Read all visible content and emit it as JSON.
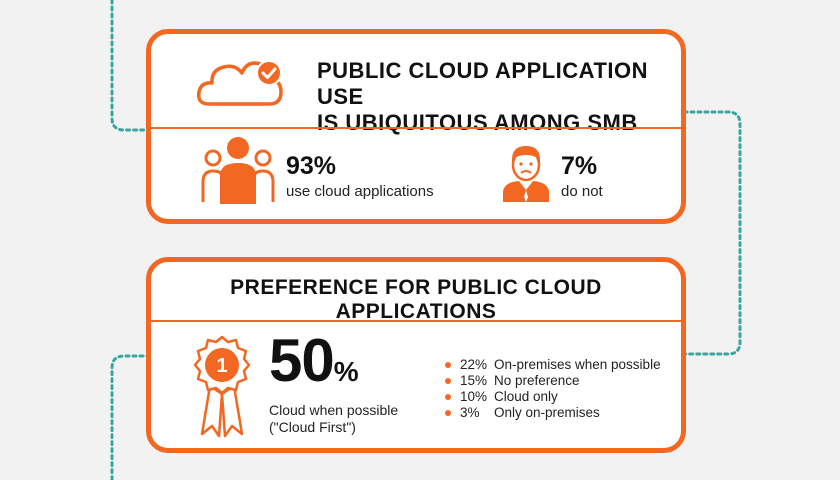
{
  "colors": {
    "accent": "#f26722",
    "connector": "#3aa6a0",
    "background": "#f2f2f2"
  },
  "section1": {
    "title_line1": "PUBLIC CLOUD APPLICATION USE",
    "title_line2": "IS UBIQUITOUS AMONG SMB",
    "icon": "cloud-check-icon",
    "stats": [
      {
        "icon": "people-group-icon",
        "value": "93%",
        "label": "use cloud applications"
      },
      {
        "icon": "sad-person-icon",
        "value": "7%",
        "label": "do not"
      }
    ]
  },
  "section2": {
    "title": "PREFERENCE FOR PUBLIC CLOUD APPLICATIONS",
    "icon": "first-place-ribbon-icon",
    "badge_number": "1",
    "main_value": "50",
    "main_unit": "%",
    "main_label_line1": "Cloud when possible",
    "main_label_line2": "(\"Cloud First\")",
    "items": [
      {
        "pct": "22%",
        "label": "On-premises when possible"
      },
      {
        "pct": "15%",
        "label": "No preference"
      },
      {
        "pct": "10%",
        "label": "Cloud only"
      },
      {
        "pct": "3%",
        "label": "Only on-premises"
      }
    ]
  }
}
